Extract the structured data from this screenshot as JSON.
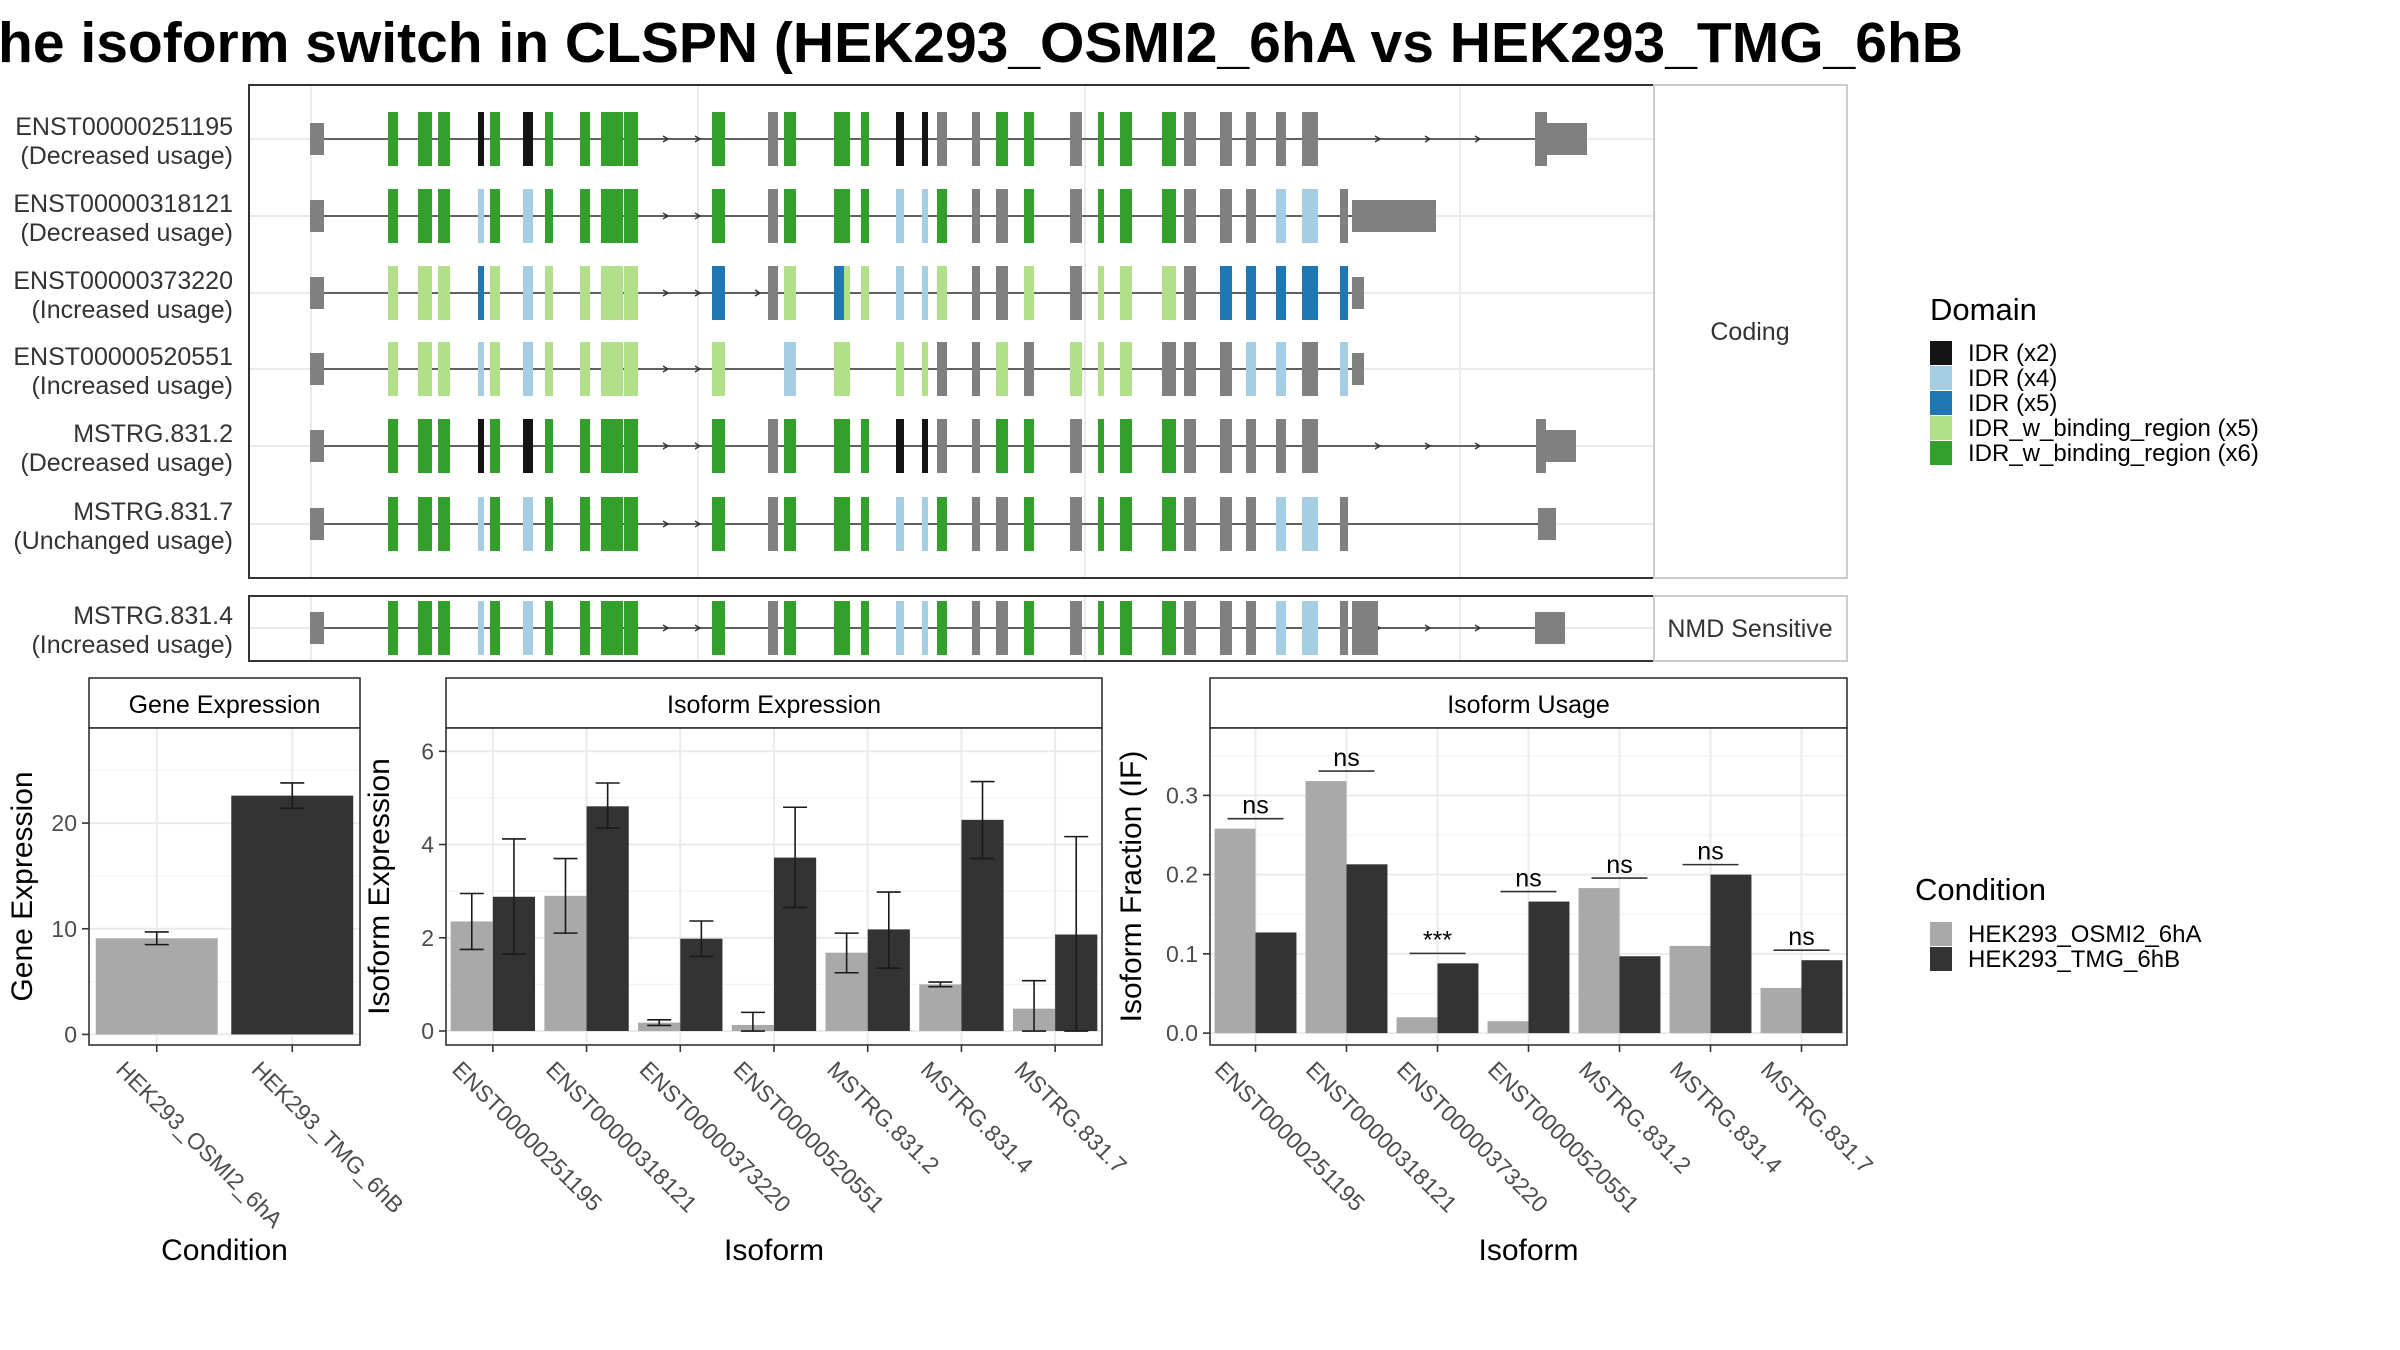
{
  "title": "he isoform switch in CLSPN (HEK293_OSMI2_6hA vs HEK293_TMG_6hB",
  "colors": {
    "exon": "#808080",
    "IDR (x2)": "#141414",
    "IDR (x4)": "#a6cee3",
    "IDR (x5)": "#1f78b4",
    "IDR_w_binding_region (x5)": "#b2df8a",
    "IDR_w_binding_region (x6)": "#33a02c",
    "cond_a": "#a9a9a9",
    "cond_b": "#333333",
    "error": "#1a1a1a"
  },
  "legends": {
    "domain_title": "Domain",
    "domains": [
      "IDR (x2)",
      "IDR (x4)",
      "IDR (x5)",
      "IDR_w_binding_region (x5)",
      "IDR_w_binding_region (x6)"
    ],
    "condition_title": "Condition",
    "conditions": [
      "HEK293_OSMI2_6hA",
      "HEK293_TMG_6hB"
    ]
  },
  "transcripts": {
    "coding_strip": "Coding",
    "nmd_strip": "NMD Sensitive",
    "coding": [
      {
        "id": "ENST00000251195",
        "usage": "(Decreased usage)",
        "scheme": "A"
      },
      {
        "id": "ENST00000318121",
        "usage": "(Decreased usage)",
        "scheme": "B"
      },
      {
        "id": "ENST00000373220",
        "usage": "(Increased usage)",
        "scheme": "C"
      },
      {
        "id": "ENST00000520551",
        "usage": "(Increased usage)",
        "scheme": "D"
      },
      {
        "id": "MSTRG.831.2",
        "usage": "(Decreased usage)",
        "scheme": "A"
      },
      {
        "id": "MSTRG.831.7",
        "usage": "(Unchanged usage)",
        "scheme": "B"
      }
    ],
    "nmd": [
      {
        "id": "MSTRG.831.4",
        "usage": "(Increased usage)",
        "scheme": "B"
      }
    ]
  },
  "chart_data": [
    {
      "type": "bar",
      "title": "Gene Expression",
      "xlabel": "Condition",
      "ylabel": "Gene Expression",
      "categories": [
        "HEK293_OSMI2_6hA",
        "HEK293_TMG_6hB"
      ],
      "values": [
        9.1,
        22.6
      ],
      "error_low": [
        8.5,
        21.4
      ],
      "error_high": [
        9.7,
        23.8
      ],
      "ylim": [
        -1,
        29
      ],
      "yticks": [
        0,
        10,
        20
      ]
    },
    {
      "type": "bar",
      "title": "Isoform Expression",
      "xlabel": "Isoform",
      "ylabel": "Isoform Expression",
      "categories": [
        "ENST00000251195",
        "ENST00000318121",
        "ENST00000373220",
        "ENST00000520551",
        "MSTRG.831.2",
        "MSTRG.831.4",
        "MSTRG.831.7"
      ],
      "series": [
        {
          "name": "HEK293_OSMI2_6hA",
          "values": [
            2.35,
            2.9,
            0.18,
            0.13,
            1.68,
            1.0,
            0.48
          ],
          "error_low": [
            1.75,
            2.1,
            0.12,
            0.0,
            1.25,
            0.95,
            0.0
          ],
          "error_high": [
            2.95,
            3.7,
            0.24,
            0.4,
            2.1,
            1.05,
            1.08
          ]
        },
        {
          "name": "HEK293_TMG_6hB",
          "values": [
            2.88,
            4.82,
            1.98,
            3.72,
            2.18,
            4.53,
            2.07
          ],
          "error_low": [
            1.65,
            4.35,
            1.6,
            2.65,
            1.35,
            3.7,
            0.0
          ],
          "error_high": [
            4.12,
            5.32,
            2.36,
            4.8,
            2.98,
            5.35,
            4.17
          ]
        }
      ],
      "ylim": [
        -0.3,
        6.5
      ],
      "yticks": [
        0,
        2,
        4,
        6
      ]
    },
    {
      "type": "bar",
      "title": "Isoform Usage",
      "xlabel": "Isoform",
      "ylabel": "Isoform Fraction (IF)",
      "categories": [
        "ENST00000251195",
        "ENST00000318121",
        "ENST00000373220",
        "ENST00000520551",
        "MSTRG.831.2",
        "MSTRG.831.4",
        "MSTRG.831.7"
      ],
      "series": [
        {
          "name": "HEK293_OSMI2_6hA",
          "values": [
            0.258,
            0.318,
            0.02,
            0.015,
            0.183,
            0.11,
            0.057
          ]
        },
        {
          "name": "HEK293_TMG_6hB",
          "values": [
            0.127,
            0.213,
            0.088,
            0.166,
            0.097,
            0.2,
            0.092
          ]
        }
      ],
      "significance": [
        "ns",
        "ns",
        "***",
        "ns",
        "ns",
        "ns",
        "ns"
      ],
      "ylim": [
        -0.015,
        0.385
      ],
      "yticks": [
        0.0,
        0.1,
        0.2,
        0.3
      ],
      "ytick_labels": [
        "0.0",
        "0.1",
        "0.2",
        "0.3"
      ]
    }
  ]
}
